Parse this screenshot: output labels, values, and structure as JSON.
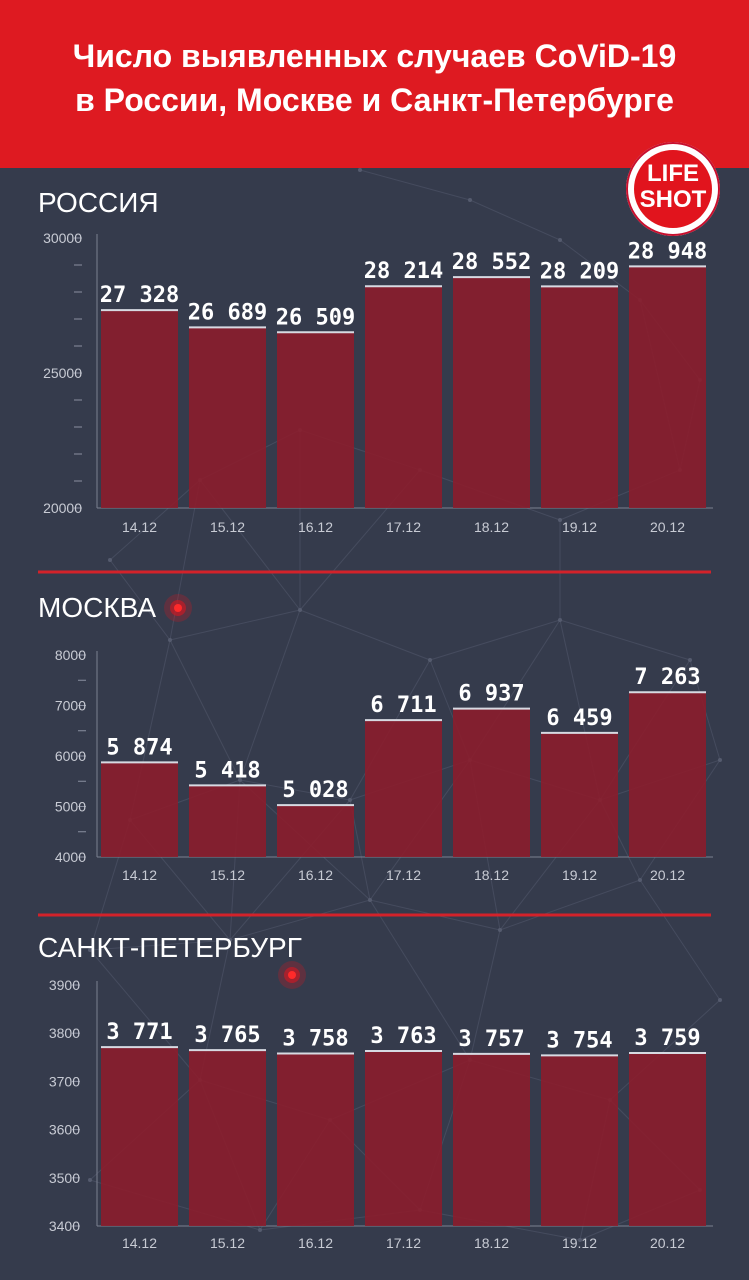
{
  "header": {
    "title_line1": "Число выявленных случаев CoViD-19",
    "title_line2": "в России, Москве и Санкт-Петербурге"
  },
  "logo": {
    "line1": "LIFE",
    "line2": "SHOT"
  },
  "colors": {
    "background": "#353b4c",
    "header": "#de1a21",
    "bar": "#8b1d2c",
    "divider": "#d3222a"
  },
  "chart_data": [
    {
      "type": "bar",
      "title": "РОССИЯ",
      "categories": [
        "14.12",
        "15.12",
        "16.12",
        "17.12",
        "18.12",
        "19.12",
        "20.12"
      ],
      "values": [
        27328,
        26689,
        26509,
        28214,
        28552,
        28209,
        28948
      ],
      "value_labels": [
        "27 328",
        "26 689",
        "26 509",
        "28 214",
        "28 552",
        "28 209",
        "28 948"
      ],
      "ylim": [
        20000,
        30000
      ],
      "yticks": [
        "20000",
        "25000",
        "30000"
      ]
    },
    {
      "type": "bar",
      "title": "МОСКВА",
      "categories": [
        "14.12",
        "15.12",
        "16.12",
        "17.12",
        "18.12",
        "19.12",
        "20.12"
      ],
      "values": [
        5874,
        5418,
        5028,
        6711,
        6937,
        6459,
        7263
      ],
      "value_labels": [
        "5 874",
        "5 418",
        "5 028",
        "6 711",
        "6 937",
        "6 459",
        "7 263"
      ],
      "ylim": [
        4000,
        8000
      ],
      "yticks": [
        "4000",
        "5000",
        "6000",
        "7000",
        "8000"
      ]
    },
    {
      "type": "bar",
      "title": "САНКТ-ПЕТЕРБУРГ",
      "categories": [
        "14.12",
        "15.12",
        "16.12",
        "17.12",
        "18.12",
        "19.12",
        "20.12"
      ],
      "values": [
        3771,
        3765,
        3758,
        3763,
        3757,
        3754,
        3759
      ],
      "value_labels": [
        "3 771",
        "3 765",
        "3 758",
        "3 763",
        "3 757",
        "3 754",
        "3 759"
      ],
      "ylim": [
        3400,
        3900
      ],
      "yticks": [
        "3400",
        "3500",
        "3600",
        "3700",
        "3800",
        "3900"
      ]
    }
  ]
}
